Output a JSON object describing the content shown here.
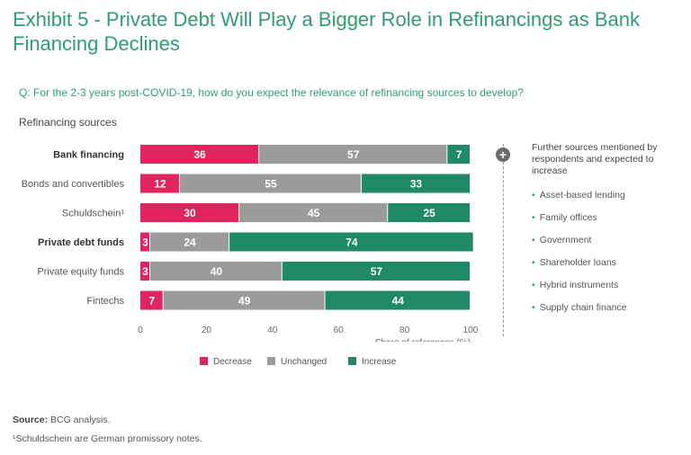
{
  "title": "Exhibit 5 - Private Debt Will Play a Bigger Role in Refinancings as Bank Financing Declines",
  "question": "Q: For the 2-3 years post-COVID-19, how do you expect the relevance of refinancing sources to develop?",
  "sources_label": "Refinancing sources",
  "further_heading": "Further sources mentioned by respondents and expected to increase",
  "further_items": [
    "Asset-based lending",
    "Family offices",
    "Government",
    "Shareholder loans",
    "Hybrid instruments",
    "Supply chain finance"
  ],
  "footer": {
    "source_label": "Source:",
    "source_text": "BCG analysis.",
    "note": "¹Schuldschein are German promissory notes."
  },
  "colors": {
    "decrease": "#e0245e",
    "unchanged": "#9b9b9b",
    "increase": "#1f8a63",
    "accent": "#2e9d6f"
  },
  "chart_data": {
    "type": "bar",
    "orientation": "horizontal",
    "stacked": true,
    "categories": [
      "Bank financing",
      "Bonds and convertibles",
      "Schuldschein¹",
      "Private debt funds",
      "Private equity funds",
      "Fintechs"
    ],
    "bold_categories": [
      "Bank financing",
      "Private debt funds"
    ],
    "series": [
      {
        "name": "Decrease",
        "values": [
          36,
          12,
          30,
          3,
          3,
          7
        ]
      },
      {
        "name": "Unchanged",
        "values": [
          57,
          55,
          45,
          24,
          40,
          49
        ]
      },
      {
        "name": "Increase",
        "values": [
          7,
          33,
          25,
          74,
          57,
          44
        ]
      }
    ],
    "xlim": [
      0,
      100
    ],
    "xticks": [
      0,
      20,
      40,
      60,
      80,
      100
    ],
    "xlabel": "Share of references (%)",
    "legend_position": "bottom"
  }
}
